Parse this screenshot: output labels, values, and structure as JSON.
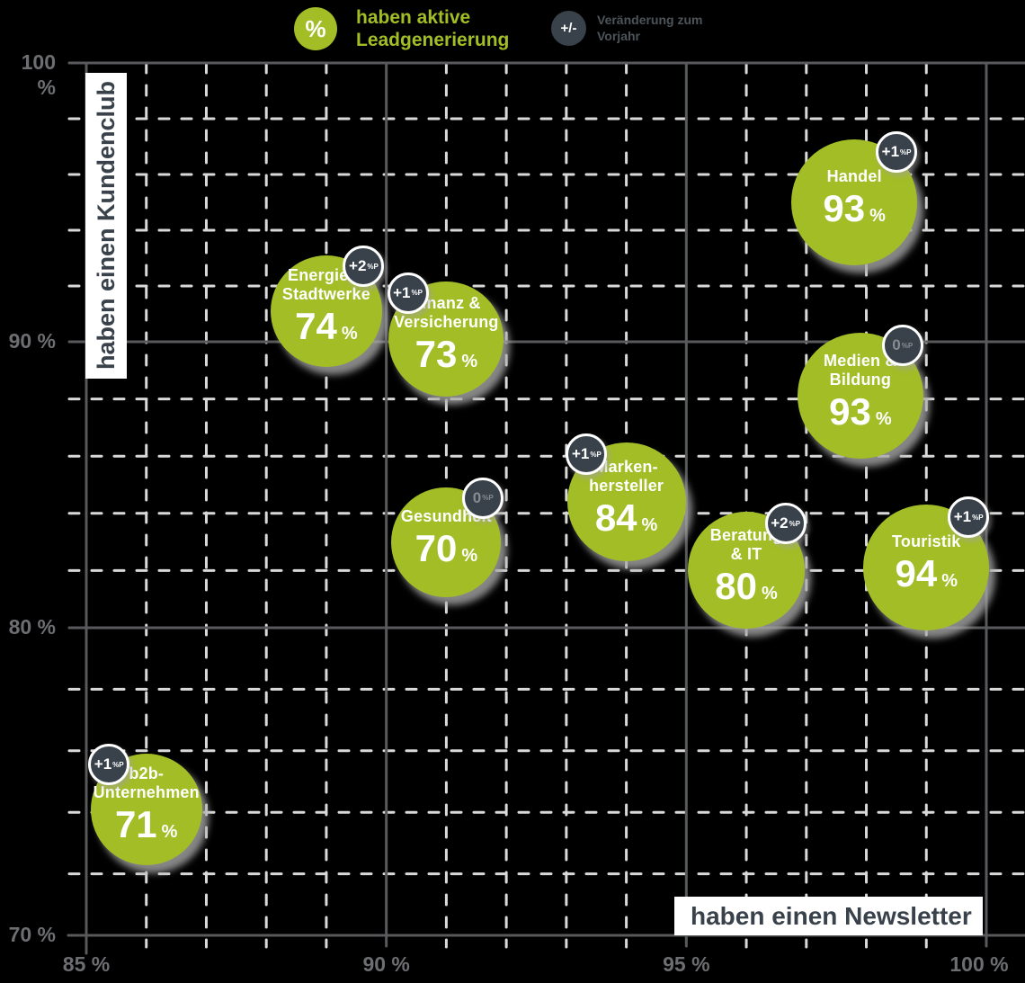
{
  "legend": {
    "leadgen": {
      "symbol": "%",
      "lines": [
        "haben aktive",
        "Leadgenerierung"
      ]
    },
    "change": {
      "symbol": "+/-",
      "lines": [
        "Veränderung zum",
        "Vorjahr"
      ]
    }
  },
  "chart_data": {
    "type": "scatter",
    "title": "",
    "x_axis": {
      "label": "haben einen Newsletter",
      "min": 85,
      "max": 100,
      "minor_step": 1,
      "major_ticks": [
        {
          "value": 85,
          "label": "85 %"
        },
        {
          "value": 90,
          "label": "90 %"
        },
        {
          "value": 95,
          "label": "95 %"
        },
        {
          "value": 100,
          "label": "100 %"
        }
      ]
    },
    "y_axis": {
      "label": "haben einen Kundenclub",
      "min": 70,
      "max": 100,
      "minor_step": 2,
      "major_ticks": [
        {
          "value": 100,
          "label": "100 %"
        },
        {
          "value": 90,
          "label": "90 %"
        },
        {
          "value": 80,
          "label": "80 %"
        },
        {
          "value": 70,
          "label": "70 %"
        }
      ]
    },
    "bubble_value_meaning": "haben aktive Leadgenerierung",
    "badge_meaning": "Veränderung zum Vorjahr",
    "grid": {
      "major_style": "solid",
      "minor_style": "dashed"
    },
    "points": [
      {
        "name": "Energie & Stadtwerke",
        "name_lines": [
          "Energie &",
          "Stadtwerke"
        ],
        "newsletter_pct": 89.0,
        "kundenclub_pct": 91.1,
        "leadgen_pct": 74,
        "value_unit": "%",
        "change": "+2",
        "change_unit": "%P",
        "badge_side": "ne",
        "radius_px": 62
      },
      {
        "name": "Finanz & Versicherung",
        "name_lines": [
          "Finanz &",
          "Versicherung"
        ],
        "newsletter_pct": 91.0,
        "kundenclub_pct": 90.1,
        "leadgen_pct": 73,
        "value_unit": "%",
        "change": "+1",
        "change_unit": "%P",
        "badge_side": "nw",
        "radius_px": 64
      },
      {
        "name": "Handel",
        "name_lines": [
          "Handel"
        ],
        "newsletter_pct": 97.8,
        "kundenclub_pct": 95.0,
        "leadgen_pct": 93,
        "value_unit": "%",
        "change": "+1",
        "change_unit": "%P",
        "badge_side": "ne",
        "radius_px": 70
      },
      {
        "name": "Medien & Bildung",
        "name_lines": [
          "Medien &",
          "Bildung"
        ],
        "newsletter_pct": 97.9,
        "kundenclub_pct": 88.1,
        "leadgen_pct": 93,
        "value_unit": "%",
        "change": "0",
        "change_unit": "%P",
        "badge_side": "ne",
        "radius_px": 70
      },
      {
        "name": "Markenhersteller",
        "name_lines": [
          "Marken-",
          "hersteller"
        ],
        "newsletter_pct": 94.0,
        "kundenclub_pct": 84.4,
        "leadgen_pct": 84,
        "value_unit": "%",
        "change": "+1",
        "change_unit": "%P",
        "badge_side": "nw",
        "radius_px": 66
      },
      {
        "name": "Gesundheit",
        "name_lines": [
          "Gesundheit"
        ],
        "newsletter_pct": 91.0,
        "kundenclub_pct": 83.0,
        "leadgen_pct": 70,
        "value_unit": "%",
        "change": "0",
        "change_unit": "%P",
        "badge_side": "ne",
        "radius_px": 61
      },
      {
        "name": "Beratung & IT",
        "name_lines": [
          "Beratung",
          "& IT"
        ],
        "newsletter_pct": 96.0,
        "kundenclub_pct": 82.0,
        "leadgen_pct": 80,
        "value_unit": "%",
        "change": "+2",
        "change_unit": "%P",
        "badge_side": "ne",
        "radius_px": 65
      },
      {
        "name": "Touristik",
        "name_lines": [
          "Touristik"
        ],
        "newsletter_pct": 99.0,
        "kundenclub_pct": 82.1,
        "leadgen_pct": 94,
        "value_unit": "%",
        "change": "+1",
        "change_unit": "%P",
        "badge_side": "ne",
        "radius_px": 70
      },
      {
        "name": "b2b-Unternehmen",
        "name_lines": [
          "b2b-",
          "Unternehmen"
        ],
        "newsletter_pct": 86.0,
        "kundenclub_pct": 74.1,
        "leadgen_pct": 71,
        "value_unit": "%",
        "change": "+1",
        "change_unit": "%P",
        "badge_side": "nw",
        "radius_px": 62
      }
    ]
  },
  "colors": {
    "bubble_green": "#a3bd26",
    "badge_dark": "#39424b",
    "axis_text_gray": "#6d6e71",
    "grid_major": "#58595b",
    "grid_minor": "#d9d9d9",
    "zero_change_text": "#868c91",
    "label_box_bg": "#ffffff",
    "label_box_text": "#39424b",
    "background": "#000000"
  }
}
